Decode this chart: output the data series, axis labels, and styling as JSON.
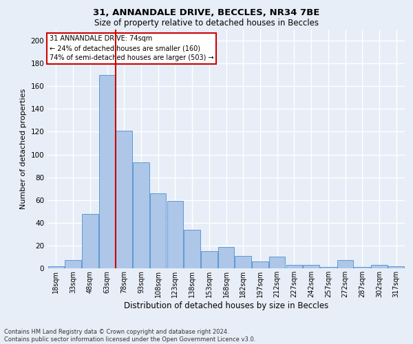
{
  "title_line1": "31, ANNANDALE DRIVE, BECCLES, NR34 7BE",
  "title_line2": "Size of property relative to detached houses in Beccles",
  "xlabel": "Distribution of detached houses by size in Beccles",
  "ylabel": "Number of detached properties",
  "categories": [
    "18sqm",
    "33sqm",
    "48sqm",
    "63sqm",
    "78sqm",
    "93sqm",
    "108sqm",
    "123sqm",
    "138sqm",
    "153sqm",
    "168sqm",
    "182sqm",
    "197sqm",
    "212sqm",
    "227sqm",
    "242sqm",
    "257sqm",
    "272sqm",
    "287sqm",
    "302sqm",
    "317sqm"
  ],
  "values": [
    2,
    7,
    48,
    170,
    121,
    93,
    66,
    59,
    34,
    15,
    19,
    11,
    6,
    10,
    3,
    3,
    1,
    7,
    1,
    3,
    2
  ],
  "bar_color": "#aec6e8",
  "bar_edge_color": "#5b9bd5",
  "red_line_bar_index": 3,
  "annotation_line1": "31 ANNANDALE DRIVE: 74sqm",
  "annotation_line2": "← 24% of detached houses are smaller (160)",
  "annotation_line3": "74% of semi-detached houses are larger (503) →",
  "annotation_box_facecolor": "#ffffff",
  "annotation_box_edgecolor": "#cc0000",
  "ylim": [
    0,
    210
  ],
  "yticks": [
    0,
    20,
    40,
    60,
    80,
    100,
    120,
    140,
    160,
    180,
    200
  ],
  "background_color": "#e8eef7",
  "grid_color": "#ffffff",
  "footer_line1": "Contains HM Land Registry data © Crown copyright and database right 2024.",
  "footer_line2": "Contains public sector information licensed under the Open Government Licence v3.0."
}
